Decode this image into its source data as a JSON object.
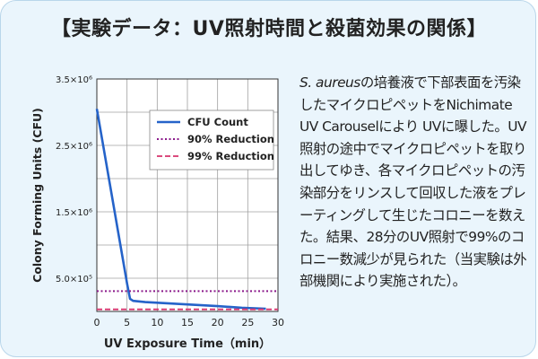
{
  "title": "【実験データ：UV照射時間と殺菌効果の関係】",
  "description": {
    "organism": "S. aureus",
    "text": "の培養液で下部表面を汚染したマイクロピペットをNichimate UV Carouselにより UVに曝した。UV照射の途中でマイクロピペットを取り出してゆき、各マイクロピペットの汚染部分をリンスして回収した液をプレーティングして生じたコロニーを数えた。結果、28分のUV照射で99%のコロニー数減少が見られた（当実験は外部機関により実施された）。"
  },
  "colors": {
    "cfu_line": "#2563c9",
    "reduction_90": "#8b1a8b",
    "reduction_99": "#d6336c",
    "plot_bg": "#ffffff",
    "grid": "#a0a0a0"
  },
  "chart_data": {
    "type": "line",
    "xlabel": "UV Exposure Time（min）",
    "ylabel": "Colony Forming Units (CFU)",
    "xlim": [
      0,
      30
    ],
    "ylim": [
      0,
      3500000
    ],
    "x_ticks": [
      0,
      5,
      10,
      15,
      20,
      25,
      30
    ],
    "x_tick_labels": [
      "0",
      "5",
      "10",
      "15",
      "20",
      "25",
      "30"
    ],
    "y_ticks": [
      500000,
      1500000,
      2500000,
      3500000
    ],
    "y_tick_labels": [
      "5.0×10⁵",
      "1.5×10⁶",
      "2.5×10⁶",
      "3.5×10⁶"
    ],
    "grid": true,
    "legend_position": "top-right",
    "series": [
      {
        "name": "CFU Count",
        "style": "solid",
        "x": [
          0,
          5,
          5.5,
          6,
          8,
          12,
          16,
          20,
          24,
          28
        ],
        "y": [
          3050000,
          420000,
          190000,
          160000,
          140000,
          120000,
          100000,
          80000,
          55000,
          40000
        ]
      },
      {
        "name": "90% Reduction",
        "style": "dotted",
        "x": [
          0,
          30
        ],
        "y": [
          305000,
          305000
        ]
      },
      {
        "name": "99% Reduction",
        "style": "dashed",
        "x": [
          0,
          30
        ],
        "y": [
          30500,
          30500
        ]
      }
    ]
  }
}
